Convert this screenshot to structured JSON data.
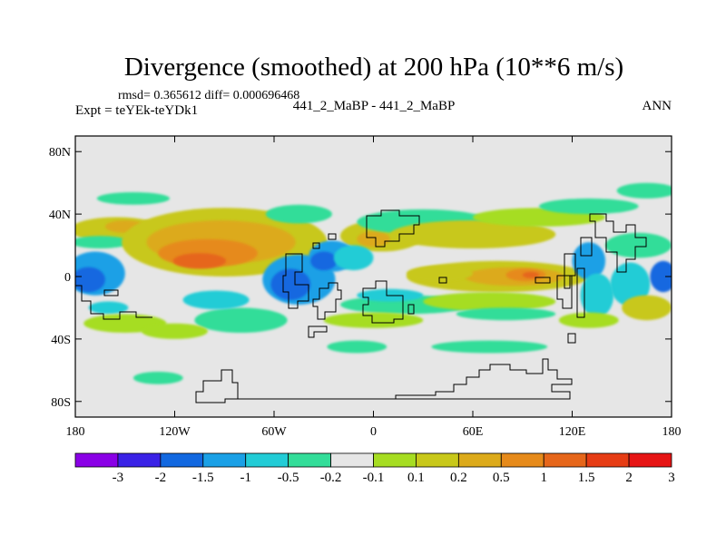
{
  "chart_data": {
    "type": "heatmap",
    "title": "Divergence (smoothed) at 200 hPa (10**6 m/s)",
    "stats_text": "rmsd= 0.365612 diff= 0.000696468",
    "left_label": "Expt = teYEk-teYDk1",
    "center_label": "441_2_MaBP - 441_2_MaBP",
    "right_label": "ANN",
    "xlim": [
      -180,
      180
    ],
    "ylim": [
      -90,
      90
    ],
    "x_ticks": [
      {
        "value": -180,
        "label": "180"
      },
      {
        "value": -120,
        "label": "120W"
      },
      {
        "value": -60,
        "label": "60W"
      },
      {
        "value": 0,
        "label": "0"
      },
      {
        "value": 60,
        "label": "60E"
      },
      {
        "value": 120,
        "label": "120E"
      },
      {
        "value": 180,
        "label": "180"
      }
    ],
    "y_ticks": [
      {
        "value": 80,
        "label": "80N"
      },
      {
        "value": 40,
        "label": "40N"
      },
      {
        "value": 0,
        "label": "0"
      },
      {
        "value": -40,
        "label": "40S"
      },
      {
        "value": -80,
        "label": "80S"
      }
    ],
    "colorbar": {
      "colors": [
        "#8a00e6",
        "#3a22e6",
        "#1268e0",
        "#1aa0e6",
        "#22ccd6",
        "#33dd99",
        "#e6e6e6",
        "#a6dd22",
        "#c8c81a",
        "#dcaa1a",
        "#e68a1a",
        "#e6661a",
        "#e63c14",
        "#e61414"
      ],
      "labels": [
        "-3",
        "-2",
        "-1.5",
        "-1",
        "-0.5",
        "-0.2",
        "-0.1",
        "0.1",
        "0.2",
        "0.5",
        "1",
        "1.5",
        "2",
        "3"
      ]
    },
    "features": [
      {
        "name": "band-n-west",
        "lon": -155,
        "lat": 30,
        "rlon": 28,
        "rlat": 8,
        "color": "#c8c81a"
      },
      {
        "name": "band-n-west-core",
        "lon": -150,
        "lat": 32,
        "rlon": 12,
        "rlat": 4,
        "color": "#dcaa1a"
      },
      {
        "name": "band-n-west-cyan",
        "lon": -165,
        "lat": 22,
        "rlon": 18,
        "rlat": 4,
        "color": "#33dd99"
      },
      {
        "name": "wide-yellow-main",
        "lon": -90,
        "lat": 22,
        "rlon": 62,
        "rlat": 22,
        "color": "#c8c81a"
      },
      {
        "name": "wide-orange-main",
        "lon": -92,
        "lat": 22,
        "rlon": 45,
        "rlat": 14,
        "color": "#dcaa1a"
      },
      {
        "name": "wide-deep-orange",
        "lon": -100,
        "lat": 15,
        "rlon": 30,
        "rlat": 9,
        "color": "#e68a1a"
      },
      {
        "name": "wide-core",
        "lon": -105,
        "lat": 10,
        "rlon": 16,
        "rlat": 5,
        "color": "#e6661a"
      },
      {
        "name": "eq-west-blue",
        "lon": -168,
        "lat": 2,
        "rlon": 18,
        "rlat": 14,
        "color": "#1aa0e6"
      },
      {
        "name": "eq-west-blue2",
        "lon": -172,
        "lat": -2,
        "rlon": 10,
        "rlat": 8,
        "color": "#1268e0"
      },
      {
        "name": "eq-west-cyan",
        "lon": -160,
        "lat": -20,
        "rlon": 12,
        "rlat": 4,
        "color": "#22ccd6"
      },
      {
        "name": "ne-yellow",
        "lon": 5,
        "lat": 26,
        "rlon": 25,
        "rlat": 10,
        "color": "#c8c81a"
      },
      {
        "name": "ne-orange",
        "lon": 0,
        "lat": 24,
        "rlon": 10,
        "rlat": 5,
        "color": "#dcaa1a"
      },
      {
        "name": "mid-n-cyan",
        "lon": 30,
        "lat": 35,
        "rlon": 40,
        "rlat": 8,
        "color": "#33dd99"
      },
      {
        "name": "mid-n-yellow",
        "lon": 60,
        "lat": 27,
        "rlon": 50,
        "rlat": 9,
        "color": "#c8c81a"
      },
      {
        "name": "n-east-green",
        "lon": 100,
        "lat": 38,
        "rlon": 40,
        "rlat": 6,
        "color": "#a6dd22"
      },
      {
        "name": "n-east-cyan",
        "lon": 130,
        "lat": 45,
        "rlon": 30,
        "rlat": 5,
        "color": "#33dd99"
      },
      {
        "name": "n-far-cyan",
        "lon": 165,
        "lat": 55,
        "rlon": 18,
        "rlat": 5,
        "color": "#33dd99"
      },
      {
        "name": "n-west-cyan",
        "lon": -145,
        "lat": 50,
        "rlon": 22,
        "rlat": 4,
        "color": "#33dd99"
      },
      {
        "name": "mid-cyan",
        "lon": -45,
        "lat": 40,
        "rlon": 20,
        "rlat": 6,
        "color": "#33dd99"
      },
      {
        "name": "n-cyan-pac",
        "lon": 160,
        "lat": 20,
        "rlon": 20,
        "rlat": 8,
        "color": "#33dd99"
      },
      {
        "name": "africa-blue",
        "lon": -45,
        "lat": -2,
        "rlon": 22,
        "rlat": 16,
        "color": "#1aa0e6"
      },
      {
        "name": "africa-blue2",
        "lon": -50,
        "lat": -5,
        "rlon": 12,
        "rlat": 10,
        "color": "#1268e0"
      },
      {
        "name": "sam-blue",
        "lon": -25,
        "lat": 13,
        "rlon": 14,
        "rlat": 10,
        "color": "#1aa0e6"
      },
      {
        "name": "sam-blue2",
        "lon": -30,
        "lat": 10,
        "rlon": 8,
        "rlat": 6,
        "color": "#1268e0"
      },
      {
        "name": "sam-cyan",
        "lon": -12,
        "lat": 12,
        "rlon": 12,
        "rlat": 8,
        "color": "#22ccd6"
      },
      {
        "name": "eq-yellow-east",
        "lon": 75,
        "lat": 0,
        "rlon": 55,
        "rlat": 10,
        "color": "#c8c81a"
      },
      {
        "name": "eq-orange-east",
        "lon": 85,
        "lat": 0,
        "rlon": 30,
        "rlat": 6,
        "color": "#dcaa1a"
      },
      {
        "name": "eq-deep-east",
        "lon": 92,
        "lat": 1,
        "rlon": 12,
        "rlat": 4,
        "color": "#e68a1a"
      },
      {
        "name": "eq-red-east",
        "lon": 95,
        "lat": 1,
        "rlon": 5,
        "rlat": 2,
        "color": "#e6661a"
      },
      {
        "name": "eq-east2-yellow",
        "lon": 40,
        "lat": 2,
        "rlon": 20,
        "rlat": 5,
        "color": "#c8c81a"
      },
      {
        "name": "s-green-band",
        "lon": 20,
        "lat": -18,
        "rlon": 40,
        "rlat": 6,
        "color": "#33dd99"
      },
      {
        "name": "s-green-band2",
        "lon": 70,
        "lat": -16,
        "rlon": 40,
        "rlat": 6,
        "color": "#a6dd22"
      },
      {
        "name": "s-cyan-band",
        "lon": 10,
        "lat": -12,
        "rlon": 20,
        "rlat": 4,
        "color": "#22ccd6"
      },
      {
        "name": "s-cyan-east",
        "lon": 80,
        "lat": -24,
        "rlon": 30,
        "rlat": 4,
        "color": "#33dd99"
      },
      {
        "name": "s-yellow-lower",
        "lon": 0,
        "lat": -28,
        "rlon": 30,
        "rlat": 5,
        "color": "#a6dd22"
      },
      {
        "name": "s-cyan-west",
        "lon": -80,
        "lat": -28,
        "rlon": 28,
        "rlat": 8,
        "color": "#33dd99"
      },
      {
        "name": "s-green-west",
        "lon": -95,
        "lat": -15,
        "rlon": 20,
        "rlat": 6,
        "color": "#22ccd6"
      },
      {
        "name": "s-pac-yellow",
        "lon": -150,
        "lat": -30,
        "rlon": 25,
        "rlat": 6,
        "color": "#a6dd22"
      },
      {
        "name": "s-pac-green",
        "lon": -120,
        "lat": -35,
        "rlon": 20,
        "rlat": 5,
        "color": "#a6dd22"
      },
      {
        "name": "s-far-cyan",
        "lon": 70,
        "lat": -45,
        "rlon": 35,
        "rlat": 4,
        "color": "#33dd99"
      },
      {
        "name": "s-far-cyan2",
        "lon": -10,
        "lat": -45,
        "rlon": 18,
        "rlat": 4,
        "color": "#33dd99"
      },
      {
        "name": "s-far-cyan3",
        "lon": -130,
        "lat": -65,
        "rlon": 15,
        "rlat": 4,
        "color": "#33dd99"
      },
      {
        "name": "e-pac-cyan",
        "lon": 155,
        "lat": -5,
        "rlon": 12,
        "rlat": 14,
        "color": "#22ccd6"
      },
      {
        "name": "e-pac-blue",
        "lon": 175,
        "lat": 0,
        "rlon": 8,
        "rlat": 10,
        "color": "#1268e0"
      },
      {
        "name": "e-ind-blue",
        "lon": 130,
        "lat": 10,
        "rlon": 10,
        "rlat": 12,
        "color": "#1aa0e6"
      },
      {
        "name": "e-ind-cyan",
        "lon": 135,
        "lat": -12,
        "rlon": 10,
        "rlat": 14,
        "color": "#22ccd6"
      },
      {
        "name": "e-yellow-mid",
        "lon": 165,
        "lat": -20,
        "rlon": 15,
        "rlat": 8,
        "color": "#c8c81a"
      },
      {
        "name": "e-green-low",
        "lon": 130,
        "lat": -28,
        "rlon": 18,
        "rlat": 5,
        "color": "#a6dd22"
      }
    ]
  }
}
